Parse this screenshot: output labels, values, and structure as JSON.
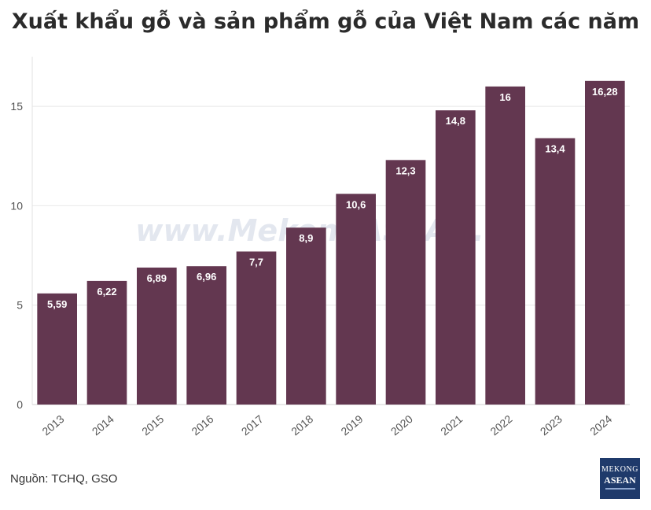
{
  "chart_data": {
    "type": "bar",
    "title": "Xuất khẩu gỗ và sản phẩm gỗ của Việt Nam các năm",
    "categories": [
      "2013",
      "2014",
      "2015",
      "2016",
      "2017",
      "2018",
      "2019",
      "2020",
      "2021",
      "2022",
      "2023",
      "2024"
    ],
    "values": [
      5.59,
      6.22,
      6.89,
      6.96,
      7.7,
      8.9,
      10.6,
      12.3,
      14.8,
      16,
      13.4,
      16.28
    ],
    "data_labels": [
      "5,59",
      "6,22",
      "6,89",
      "6,96",
      "7,7",
      "8,9",
      "10,6",
      "12,3",
      "14,8",
      "16",
      "13,4",
      "16,28"
    ],
    "yticks": [
      0,
      5,
      10,
      15
    ],
    "ylim": [
      0,
      17.5
    ],
    "grid": true,
    "bar_color": "#633750",
    "xlabel": "",
    "ylabel": ""
  },
  "watermark": "www.MekongASEAN.vn",
  "source": "Nguồn: TCHQ, GSO",
  "logo": {
    "line1": "MEKONG",
    "line2": "ASEAN"
  }
}
